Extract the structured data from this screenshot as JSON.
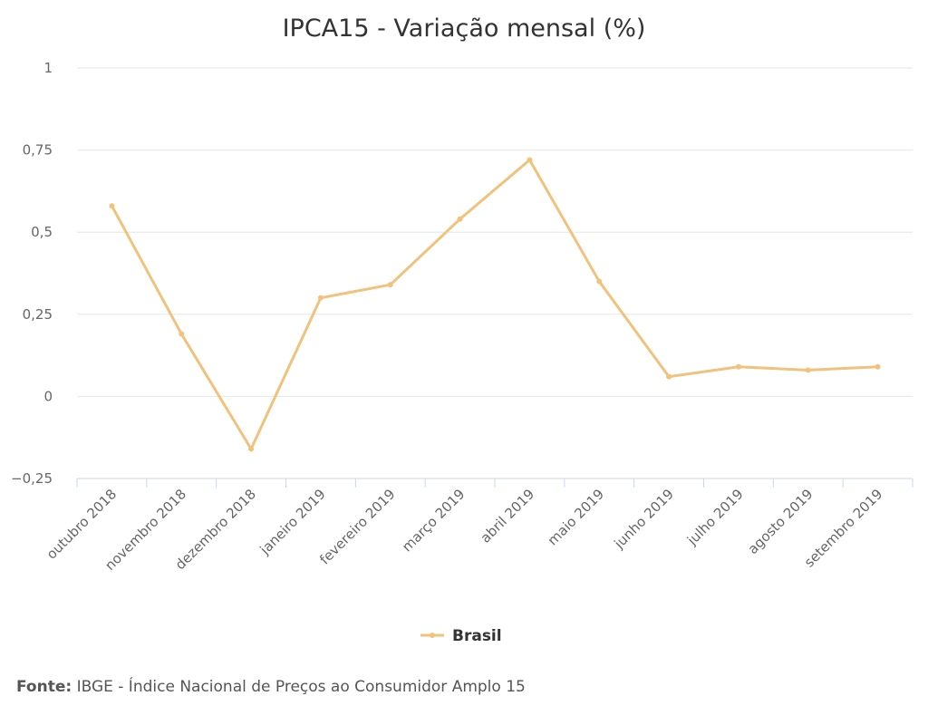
{
  "chart_data": {
    "type": "line",
    "title": "IPCA15 - Variação mensal (%)",
    "categories": [
      "outubro 2018",
      "novembro 2018",
      "dezembro 2018",
      "janeiro 2019",
      "fevereiro 2019",
      "março 2019",
      "abril 2019",
      "maio 2019",
      "junho 2019",
      "julho 2019",
      "agosto 2019",
      "setembro 2019"
    ],
    "series": [
      {
        "name": "Brasil",
        "color": "#f0c27b",
        "values": [
          0.58,
          0.19,
          -0.16,
          0.3,
          0.34,
          0.54,
          0.72,
          0.35,
          0.06,
          0.09,
          0.08,
          0.09
        ]
      }
    ],
    "y_ticks": [
      {
        "value": 1,
        "label": "1"
      },
      {
        "value": 0.75,
        "label": "0,75"
      },
      {
        "value": 0.5,
        "label": "0,5"
      },
      {
        "value": 0.25,
        "label": "0,25"
      },
      {
        "value": 0,
        "label": "0"
      },
      {
        "value": -0.25,
        "label": "−0,25"
      }
    ],
    "ylim": [
      -0.25,
      1
    ],
    "grid": true,
    "legend_position": "bottom-center",
    "xlabel": "",
    "ylabel": ""
  },
  "source": {
    "label": "Fonte:",
    "text": " IBGE - Índice Nacional de Preços ao Consumidor Amplo 15"
  }
}
